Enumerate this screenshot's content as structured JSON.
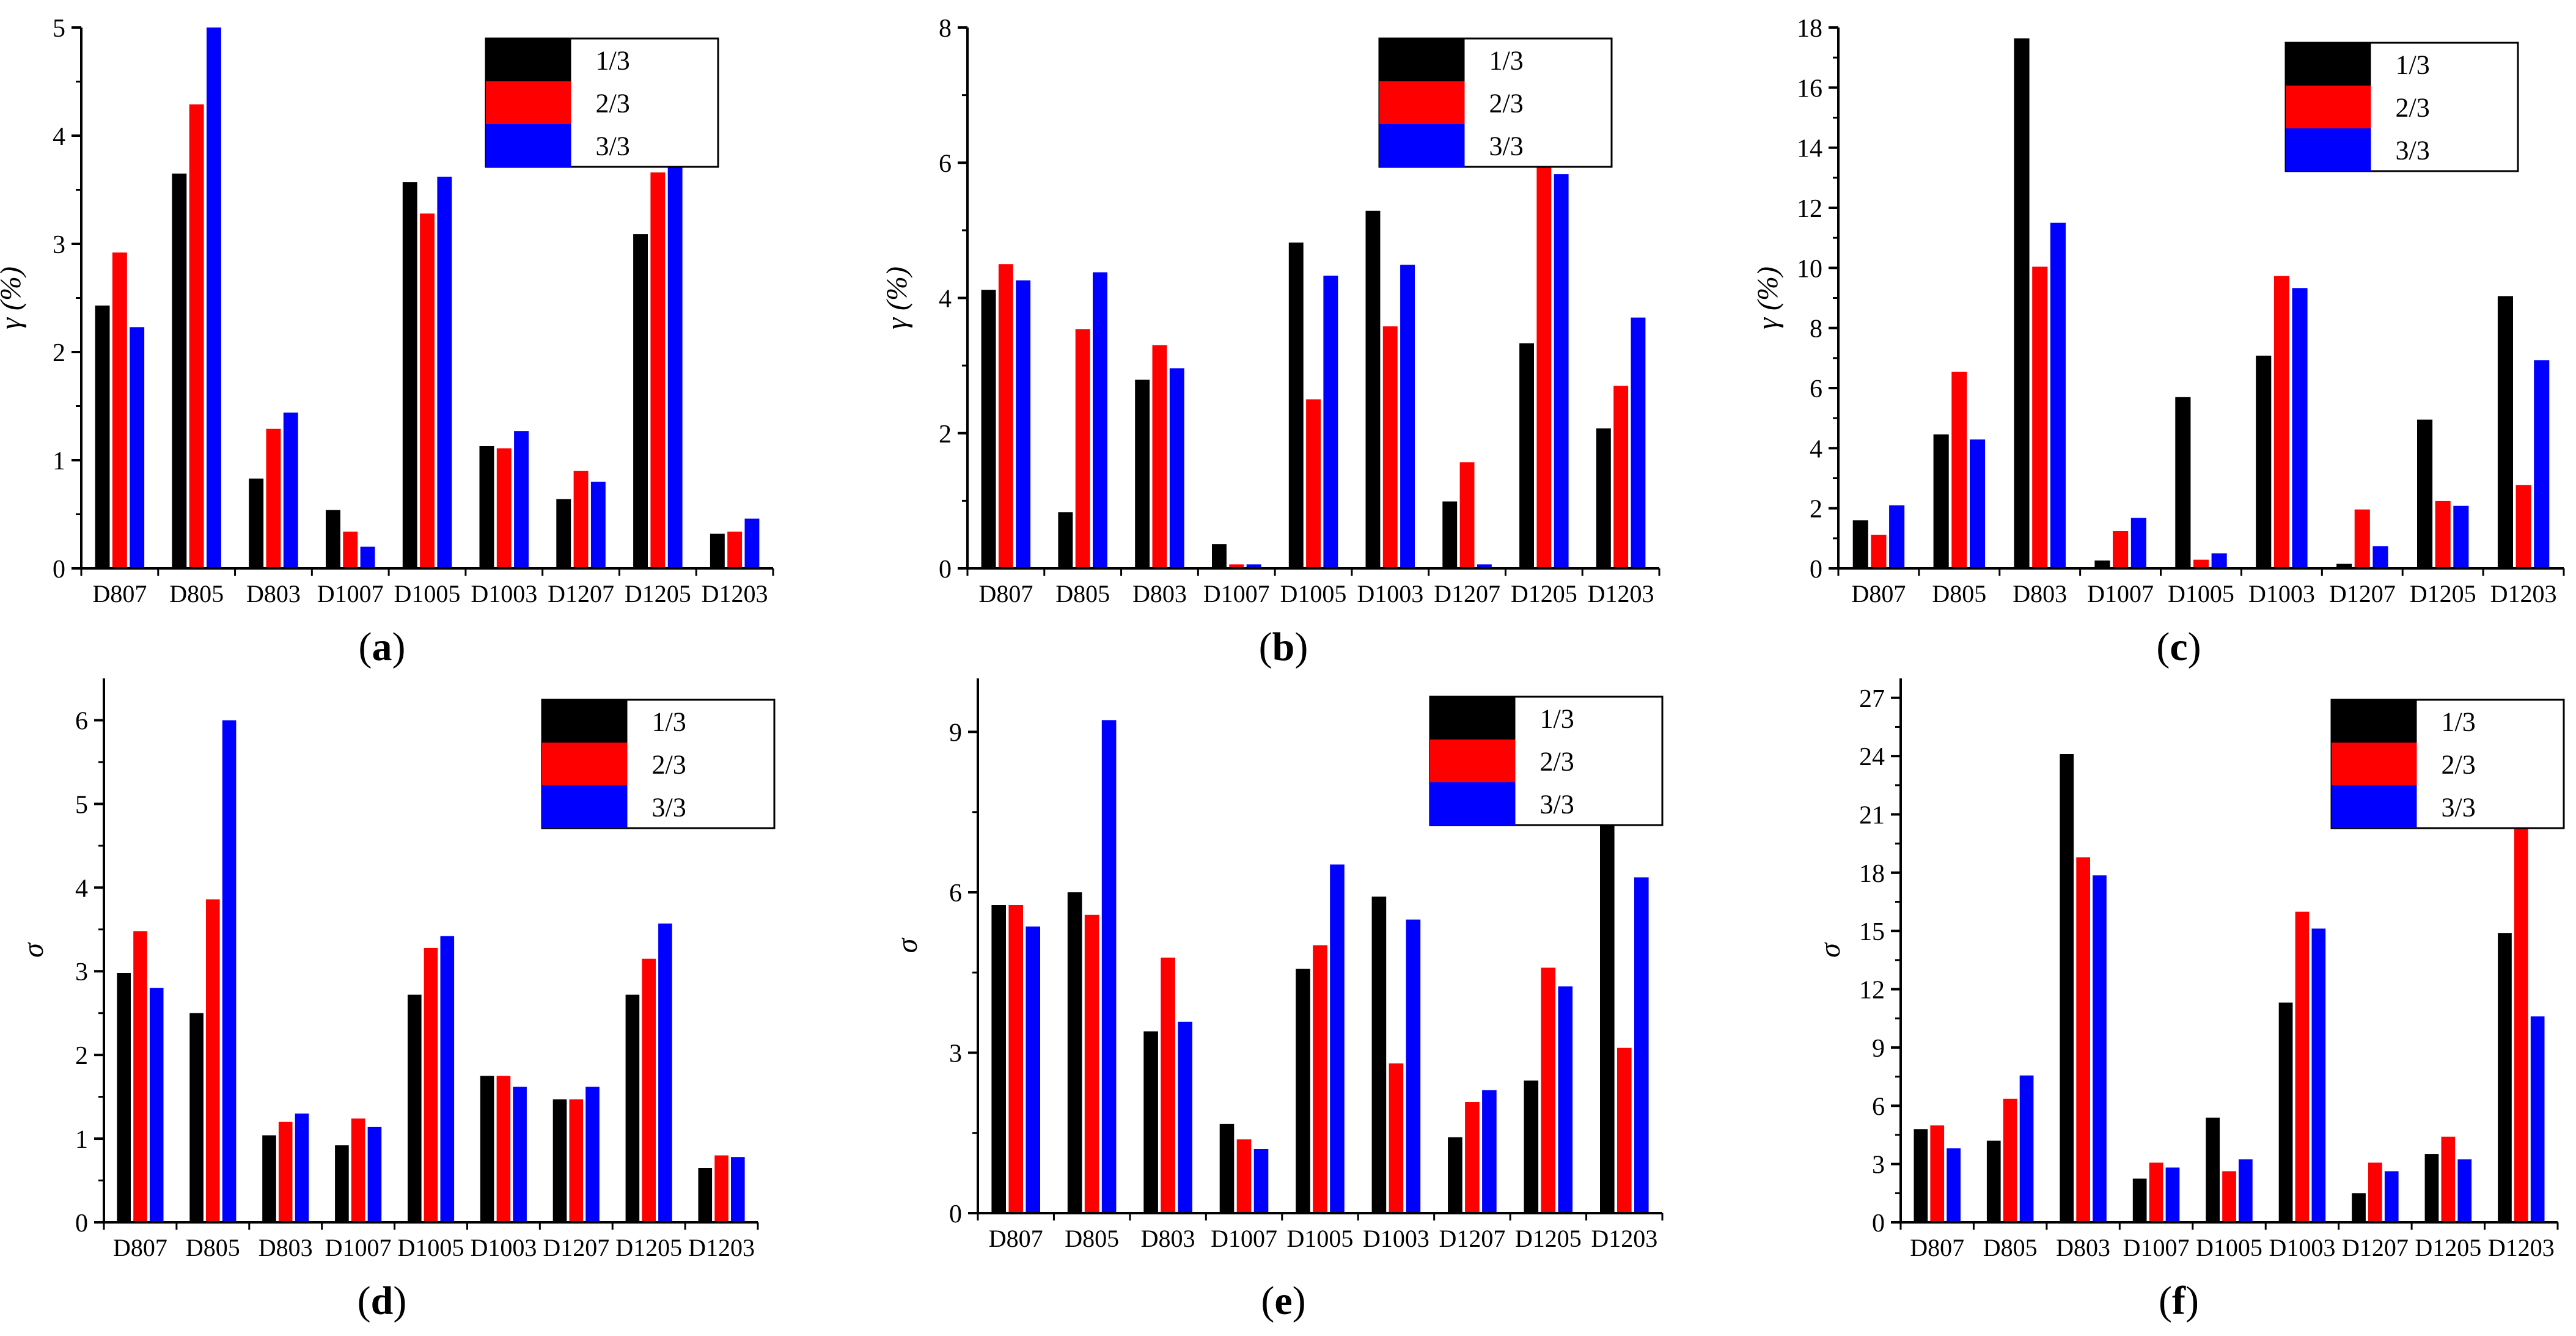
{
  "colors": {
    "1/3": "#000000",
    "2/3": "#ff0000",
    "3/3": "#0000ff"
  },
  "chart_data": [
    {
      "type": "bar",
      "panel": "a",
      "categories": [
        "D807",
        "D805",
        "D803",
        "D1007",
        "D1005",
        "D1003",
        "D1207",
        "D1205",
        "D1203"
      ],
      "ylabel": "γ (%)",
      "ylim": [
        0,
        5
      ],
      "yticks": [
        0,
        1,
        2,
        3,
        4,
        5
      ],
      "legend": [
        "1/3",
        "2/3",
        "3/3"
      ],
      "series": [
        {
          "name": "1/3",
          "values": [
            2.43,
            3.65,
            0.83,
            0.54,
            3.57,
            1.13,
            0.64,
            3.09,
            0.32
          ]
        },
        {
          "name": "2/3",
          "values": [
            2.92,
            4.29,
            1.29,
            0.34,
            3.28,
            1.11,
            0.9,
            3.66,
            0.34
          ]
        },
        {
          "name": "3/3",
          "values": [
            2.23,
            5.0,
            1.44,
            0.2,
            3.62,
            1.27,
            0.8,
            3.8,
            0.46
          ]
        }
      ]
    },
    {
      "type": "bar",
      "panel": "b",
      "categories": [
        "D807",
        "D805",
        "D803",
        "D1007",
        "D1005",
        "D1003",
        "D1207",
        "D1205",
        "D1203"
      ],
      "ylabel": "γ (%)",
      "ylim": [
        0,
        8
      ],
      "yticks": [
        0,
        2,
        4,
        6,
        8
      ],
      "legend": [
        "1/3",
        "2/3",
        "3/3"
      ],
      "series": [
        {
          "name": "1/3",
          "values": [
            4.12,
            0.83,
            2.79,
            0.36,
            4.82,
            5.29,
            0.99,
            3.33,
            2.07
          ]
        },
        {
          "name": "2/3",
          "values": [
            4.5,
            3.54,
            3.3,
            0.06,
            2.5,
            3.58,
            1.57,
            6.43,
            2.7
          ]
        },
        {
          "name": "3/3",
          "values": [
            4.26,
            4.38,
            2.96,
            0.06,
            4.33,
            4.49,
            0.06,
            5.83,
            3.71
          ]
        }
      ]
    },
    {
      "type": "bar",
      "panel": "c",
      "categories": [
        "D807",
        "D805",
        "D803",
        "D1007",
        "D1005",
        "D1003",
        "D1207",
        "D1205",
        "D1203"
      ],
      "ylabel": "γ (%)",
      "ylim": [
        0,
        18
      ],
      "yticks": [
        0,
        2,
        4,
        6,
        8,
        10,
        12,
        14,
        16,
        18
      ],
      "legend": [
        "1/3",
        "2/3",
        "3/3"
      ],
      "series": [
        {
          "name": "1/3",
          "values": [
            1.6,
            4.46,
            17.64,
            0.26,
            5.7,
            7.08,
            0.15,
            4.95,
            9.06
          ]
        },
        {
          "name": "2/3",
          "values": [
            1.12,
            6.54,
            10.04,
            1.24,
            0.29,
            9.73,
            1.96,
            2.24,
            2.77
          ]
        },
        {
          "name": "3/3",
          "values": [
            2.1,
            4.29,
            11.5,
            1.68,
            0.5,
            9.33,
            0.74,
            2.08,
            6.93
          ]
        }
      ]
    },
    {
      "type": "bar",
      "panel": "d",
      "categories": [
        "D807",
        "D805",
        "D803",
        "D1007",
        "D1005",
        "D1003",
        "D1207",
        "D1205",
        "D1203"
      ],
      "ylabel": "σ",
      "ylim": [
        0,
        6.5
      ],
      "yticks": [
        0,
        1,
        2,
        3,
        4,
        5,
        6
      ],
      "legend": [
        "1/3",
        "2/3",
        "3/3"
      ],
      "series": [
        {
          "name": "1/3",
          "values": [
            2.98,
            2.5,
            1.04,
            0.92,
            2.72,
            1.75,
            1.47,
            2.72,
            0.65
          ]
        },
        {
          "name": "2/3",
          "values": [
            3.48,
            3.86,
            1.2,
            1.24,
            3.28,
            1.75,
            1.47,
            3.15,
            0.8
          ]
        },
        {
          "name": "3/3",
          "values": [
            2.8,
            6.0,
            1.3,
            1.14,
            3.42,
            1.62,
            1.62,
            3.57,
            0.78
          ]
        }
      ]
    },
    {
      "type": "bar",
      "panel": "e",
      "categories": [
        "D807",
        "D805",
        "D803",
        "D1007",
        "D1005",
        "D1003",
        "D1207",
        "D1205",
        "D1203"
      ],
      "ylabel": "σ",
      "ylim": [
        0,
        10
      ],
      "yticks": [
        0,
        3,
        6,
        9
      ],
      "legend": [
        "1/3",
        "2/3",
        "3/3"
      ],
      "series": [
        {
          "name": "1/3",
          "values": [
            5.76,
            6.0,
            3.4,
            1.67,
            4.57,
            5.92,
            1.42,
            2.48,
            7.3
          ]
        },
        {
          "name": "2/3",
          "values": [
            5.76,
            5.58,
            4.78,
            1.38,
            5.01,
            2.8,
            2.08,
            4.59,
            3.09
          ]
        },
        {
          "name": "3/3",
          "values": [
            5.36,
            9.22,
            3.58,
            1.2,
            6.52,
            5.49,
            2.3,
            4.24,
            6.28
          ]
        }
      ]
    },
    {
      "type": "bar",
      "panel": "f",
      "categories": [
        "D807",
        "D805",
        "D803",
        "D1007",
        "D1005",
        "D1003",
        "D1207",
        "D1205",
        "D1203"
      ],
      "ylabel": "σ",
      "ylim": [
        0,
        28
      ],
      "yticks": [
        0,
        3,
        6,
        9,
        12,
        15,
        18,
        21,
        24,
        27
      ],
      "legend": [
        "1/3",
        "2/3",
        "3/3"
      ],
      "series": [
        {
          "name": "1/3",
          "values": [
            4.8,
            4.2,
            24.1,
            2.25,
            5.39,
            11.31,
            1.5,
            3.52,
            14.88
          ]
        },
        {
          "name": "2/3",
          "values": [
            4.99,
            6.36,
            18.79,
            3.07,
            2.63,
            15.99,
            3.07,
            4.41,
            21.06
          ]
        },
        {
          "name": "3/3",
          "values": [
            3.81,
            7.56,
            17.86,
            2.82,
            3.24,
            15.12,
            2.63,
            3.24,
            10.6
          ]
        }
      ]
    }
  ]
}
